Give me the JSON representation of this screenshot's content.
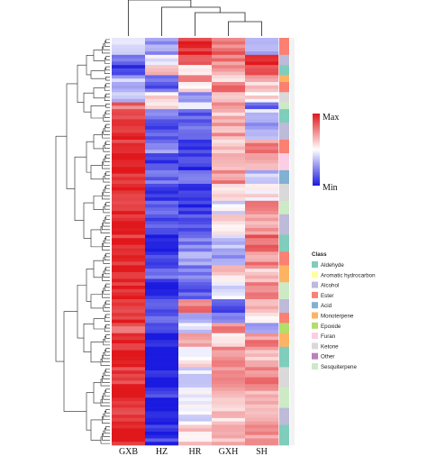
{
  "chart_data": {
    "type": "heatmap",
    "title": "",
    "xlabel": "",
    "ylabel": "",
    "columns": [
      "GXB",
      "HZ",
      "HR",
      "GXH",
      "SH"
    ],
    "column_dendrogram_order": [
      "GXB",
      "HZ",
      "HR",
      "GXH",
      "SH"
    ],
    "color_scale": {
      "max_label": "Max",
      "min_label": "Min",
      "max_color": "#e0181c",
      "mid_color": "#ffffff",
      "min_color": "#1a1ae0"
    },
    "legend_title": "Class",
    "classes": [
      {
        "name": "Aldehyde",
        "color": "#7fcdbb"
      },
      {
        "name": "Aromatic hydrocarbon",
        "color": "#ffff99"
      },
      {
        "name": "Alcohol",
        "color": "#bebada"
      },
      {
        "name": "Ester",
        "color": "#fb8072"
      },
      {
        "name": "Acid",
        "color": "#80b1d3"
      },
      {
        "name": "Monoterpene",
        "color": "#fdb462"
      },
      {
        "name": "Epoxide",
        "color": "#b3de69"
      },
      {
        "name": "Furan",
        "color": "#fccde5"
      },
      {
        "name": "Ketone",
        "color": "#d9d9d9"
      },
      {
        "name": "Other",
        "color": "#bc80bd"
      },
      {
        "name": "Sesquiterpene",
        "color": "#ccebc5"
      }
    ],
    "row_blocks": [
      {
        "rows": 5,
        "values": [
          -0.1,
          -0.4,
          0.9,
          0.6,
          -0.3
        ],
        "class": "Ester"
      },
      {
        "rows": 3,
        "values": [
          -0.6,
          -0.1,
          0.8,
          0.5,
          0.9
        ],
        "class": "Alcohol"
      },
      {
        "rows": 3,
        "values": [
          -0.9,
          0.3,
          0.2,
          0.4,
          0.8
        ],
        "class": "Aldehyde"
      },
      {
        "rows": 2,
        "values": [
          -0.3,
          -0.5,
          0.6,
          0.1,
          0.4
        ],
        "class": "Monoterpene"
      },
      {
        "rows": 3,
        "values": [
          -0.5,
          -0.7,
          0.1,
          0.6,
          0.2
        ],
        "class": "Ester"
      },
      {
        "rows": 3,
        "values": [
          -0.2,
          0.2,
          -0.5,
          0.3,
          0.1
        ],
        "class": "Ketone"
      },
      {
        "rows": 2,
        "values": [
          0.6,
          0.1,
          -0.2,
          0.5,
          -0.6
        ],
        "class": "Sesquiterpene"
      },
      {
        "rows": 4,
        "values": [
          0.9,
          -0.6,
          -0.7,
          0.3,
          -0.2
        ],
        "class": "Aldehyde"
      },
      {
        "rows": 5,
        "values": [
          0.95,
          -0.7,
          -0.6,
          0.4,
          -0.4
        ],
        "class": "Alcohol"
      },
      {
        "rows": 4,
        "values": [
          0.9,
          -0.5,
          -0.8,
          0.2,
          0.5
        ],
        "class": "Ester"
      },
      {
        "rows": 5,
        "values": [
          0.95,
          -0.8,
          -0.9,
          0.3,
          0.3
        ],
        "class": "Furan"
      },
      {
        "rows": 4,
        "values": [
          0.9,
          -0.6,
          -0.5,
          0.5,
          -0.3
        ],
        "class": "Acid"
      },
      {
        "rows": 5,
        "values": [
          0.95,
          -0.9,
          -0.8,
          0.2,
          0.1
        ],
        "class": "Ketone"
      },
      {
        "rows": 4,
        "values": [
          0.9,
          -0.7,
          -0.9,
          -0.1,
          0.6
        ],
        "class": "Sesquiterpene"
      },
      {
        "rows": 6,
        "values": [
          0.95,
          -0.8,
          -0.7,
          0.1,
          0.4
        ],
        "class": "Alcohol"
      },
      {
        "rows": 5,
        "values": [
          0.9,
          -0.9,
          -0.6,
          -0.3,
          0.7
        ],
        "class": "Aldehyde"
      },
      {
        "rows": 4,
        "values": [
          0.95,
          -0.8,
          -0.3,
          -0.4,
          0.5
        ],
        "class": "Ester"
      },
      {
        "rows": 5,
        "values": [
          0.9,
          -0.7,
          -0.5,
          0.2,
          0.3
        ],
        "class": "Monoterpene"
      },
      {
        "rows": 5,
        "values": [
          0.95,
          -0.9,
          -0.7,
          -0.1,
          0.6
        ],
        "class": "Sesquiterpene"
      },
      {
        "rows": 4,
        "values": [
          0.9,
          -0.8,
          0.6,
          -0.7,
          0.3
        ],
        "class": "Alcohol"
      },
      {
        "rows": 3,
        "values": [
          0.95,
          -0.6,
          -0.4,
          -0.6,
          0.2
        ],
        "class": "Ester"
      },
      {
        "rows": 3,
        "values": [
          0.6,
          -0.9,
          -0.2,
          0.5,
          -0.4
        ],
        "class": "Epoxide"
      },
      {
        "rows": 4,
        "values": [
          0.9,
          -0.95,
          0.4,
          0.2,
          0.5
        ],
        "class": "Monoterpene"
      },
      {
        "rows": 6,
        "values": [
          0.95,
          -0.95,
          0.1,
          0.5,
          0.3
        ],
        "class": "Aldehyde"
      },
      {
        "rows": 6,
        "values": [
          0.9,
          -0.95,
          -0.2,
          0.4,
          0.5
        ],
        "class": "Ketone"
      },
      {
        "rows": 6,
        "values": [
          0.95,
          -0.9,
          0.0,
          0.3,
          0.4
        ],
        "class": "Sesquiterpene"
      },
      {
        "rows": 5,
        "values": [
          0.9,
          -0.95,
          -0.1,
          0.2,
          0.3
        ],
        "class": "Alcohol"
      },
      {
        "rows": 6,
        "values": [
          0.95,
          -0.85,
          0.2,
          0.3,
          0.4
        ],
        "class": "Aldehyde"
      }
    ]
  }
}
